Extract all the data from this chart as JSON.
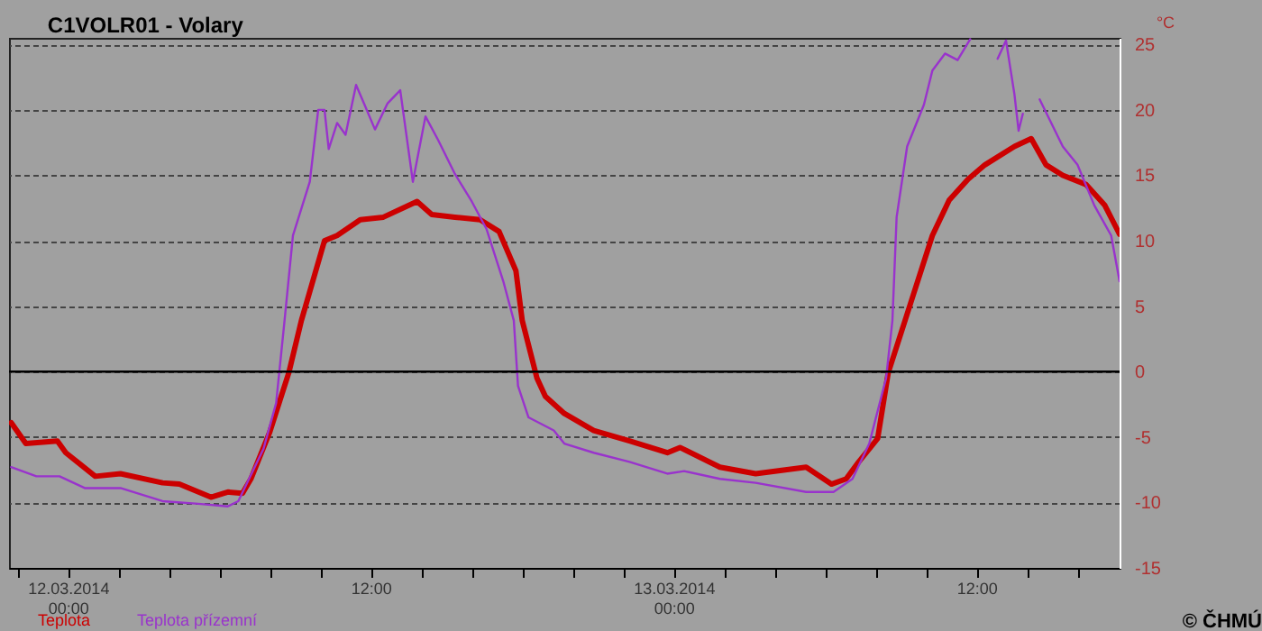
{
  "chart_data": {
    "type": "line",
    "title": "C1VOLR01 - Volary",
    "ylabel": "°C",
    "xlim": [
      "2014-03-11T21:40",
      "2014-03-13T17:40"
    ],
    "xticks": [
      {
        "value": "2014-03-11T22:00",
        "label": null
      },
      {
        "value": "2014-03-12T00:00",
        "label": "12.03.2014\n00:00"
      },
      {
        "value": "2014-03-12T02:00",
        "label": null
      },
      {
        "value": "2014-03-12T04:00",
        "label": null
      },
      {
        "value": "2014-03-12T06:00",
        "label": null
      },
      {
        "value": "2014-03-12T08:00",
        "label": null
      },
      {
        "value": "2014-03-12T10:00",
        "label": null
      },
      {
        "value": "2014-03-12T12:00",
        "label": "12:00"
      },
      {
        "value": "2014-03-12T14:00",
        "label": null
      },
      {
        "value": "2014-03-12T16:00",
        "label": null
      },
      {
        "value": "2014-03-12T18:00",
        "label": null
      },
      {
        "value": "2014-03-12T20:00",
        "label": null
      },
      {
        "value": "2014-03-12T22:00",
        "label": null
      },
      {
        "value": "2014-03-13T00:00",
        "label": "13.03.2014\n00:00"
      },
      {
        "value": "2014-03-13T02:00",
        "label": null
      },
      {
        "value": "2014-03-13T04:00",
        "label": null
      },
      {
        "value": "2014-03-13T06:00",
        "label": null
      },
      {
        "value": "2014-03-13T08:00",
        "label": null
      },
      {
        "value": "2014-03-13T10:00",
        "label": null
      },
      {
        "value": "2014-03-13T12:00",
        "label": "12:00"
      },
      {
        "value": "2014-03-13T14:00",
        "label": null
      },
      {
        "value": "2014-03-13T16:00",
        "label": null
      }
    ],
    "ylim": [
      -15,
      25.5
    ],
    "yticks": [
      -15,
      -10,
      -5,
      0,
      5,
      10,
      15,
      20,
      25
    ],
    "grid": "y",
    "legend": "bottom left",
    "ref_lines": [
      {
        "axis": "y",
        "value": 0,
        "color": "#000000"
      }
    ],
    "annotations": [
      "© ČHMÚ"
    ],
    "series": [
      {
        "name": "Teplota",
        "color": "#cc0000",
        "x": [
          "2014-03-11T21:45",
          "2014-03-11T22:20",
          "2014-03-11T23:35",
          "2014-03-11T23:55",
          "2014-03-12T01:05",
          "2014-03-12T02:05",
          "2014-03-12T03:45",
          "2014-03-12T04:25",
          "2014-03-12T05:40",
          "2014-03-12T06:20",
          "2014-03-12T06:55",
          "2014-03-12T07:15",
          "2014-03-12T08:00",
          "2014-03-12T08:45",
          "2014-03-12T09:15",
          "2014-03-12T10:10",
          "2014-03-12T10:40",
          "2014-03-12T11:35",
          "2014-03-12T12:30",
          "2014-03-12T13:50",
          "2014-03-12T14:25",
          "2014-03-12T15:20",
          "2014-03-12T16:20",
          "2014-03-12T17:05",
          "2014-03-12T17:45",
          "2014-03-12T18:00",
          "2014-03-12T18:35",
          "2014-03-12T18:55",
          "2014-03-12T19:40",
          "2014-03-12T20:50",
          "2014-03-12T22:15",
          "2014-03-12T23:45",
          "2014-03-13T00:15",
          "2014-03-13T01:50",
          "2014-03-13T03:15",
          "2014-03-13T05:15",
          "2014-03-13T06:15",
          "2014-03-13T06:50",
          "2014-03-13T07:20",
          "2014-03-13T08:05",
          "2014-03-13T08:30",
          "2014-03-13T09:10",
          "2014-03-13T10:15",
          "2014-03-13T10:55",
          "2014-03-13T11:40",
          "2014-03-13T12:20",
          "2014-03-13T13:30",
          "2014-03-13T14:10",
          "2014-03-13T14:45",
          "2014-03-13T15:25",
          "2014-03-13T16:20",
          "2014-03-13T17:05",
          "2014-03-13T17:40"
        ],
        "values": [
          -3.9,
          -5.5,
          -5.3,
          -6.2,
          -8.0,
          -7.8,
          -8.5,
          -8.6,
          -9.6,
          -9.2,
          -9.3,
          -8.2,
          -4.6,
          -0.1,
          3.9,
          10.0,
          10.4,
          11.6,
          11.8,
          13.0,
          12.0,
          11.8,
          11.6,
          10.7,
          7.7,
          3.9,
          -0.5,
          -1.9,
          -3.2,
          -4.5,
          -5.3,
          -6.2,
          -5.8,
          -7.3,
          -7.8,
          -7.3,
          -8.6,
          -8.2,
          -6.9,
          -5.1,
          -0.1,
          3.9,
          10.4,
          13.1,
          14.7,
          15.8,
          17.2,
          17.8,
          15.8,
          15.0,
          14.3,
          12.7,
          10.5
        ]
      },
      {
        "name": "Teplota přízemní",
        "color": "#9933cc",
        "x": [
          "2014-03-11T21:45",
          "2014-03-11T22:45",
          "2014-03-11T23:40",
          "2014-03-12T00:40",
          "2014-03-12T02:05",
          "2014-03-12T03:45",
          "2014-03-12T05:10",
          "2014-03-12T06:20",
          "2014-03-12T06:45",
          "2014-03-12T07:45",
          "2014-03-12T08:15",
          "2014-03-12T08:35",
          "2014-03-12T08:55",
          "2014-03-12T09:35",
          "2014-03-12T09:55",
          "2014-03-12T10:10",
          "2014-03-12T10:20",
          "2014-03-12T10:40",
          "2014-03-12T11:00",
          "2014-03-12T11:25",
          "2014-03-12T11:45",
          "2014-03-12T12:10",
          "2014-03-12T12:40",
          "2014-03-12T13:10",
          "2014-03-12T13:40",
          "2014-03-12T14:10",
          "2014-03-12T14:40",
          "2014-03-12T15:20",
          "2014-03-12T16:00",
          "2014-03-12T16:35",
          "2014-03-12T17:15",
          "2014-03-12T17:40",
          "2014-03-12T17:50",
          "2014-03-12T18:15",
          "2014-03-12T19:15",
          "2014-03-12T19:40",
          "2014-03-12T20:50",
          "2014-03-12T22:15",
          "2014-03-12T23:45",
          "2014-03-13T00:25",
          "2014-03-13T01:50",
          "2014-03-13T03:15",
          "2014-03-13T05:15",
          "2014-03-13T06:20",
          "2014-03-13T07:05",
          "2014-03-13T07:45",
          "2014-03-13T08:25",
          "2014-03-13T08:40",
          "2014-03-13T08:50",
          "2014-03-13T09:15",
          "2014-03-13T09:55",
          "2014-03-13T10:15",
          "2014-03-13T10:45",
          "2014-03-13T11:15",
          "2014-03-13T11:45",
          "2014-03-13T12:45",
          "2014-03-13T12:50",
          "2014-03-13T13:10",
          "2014-03-13T13:30",
          "2014-03-13T13:40",
          "2014-03-13T13:50",
          "2014-03-13T14:10",
          "2014-03-13T14:30",
          "2014-03-13T15:25",
          "2014-03-13T16:00",
          "2014-03-13T16:40",
          "2014-03-13T17:20",
          "2014-03-13T17:40"
        ],
        "values": [
          -7.3,
          -8.0,
          -8.0,
          -8.9,
          -8.9,
          -9.9,
          -10.1,
          -10.3,
          -9.9,
          -5.9,
          -2.4,
          3.9,
          10.4,
          14.5,
          20.0,
          20.0,
          17.0,
          19.0,
          18.1,
          21.9,
          20.4,
          18.5,
          20.5,
          21.5,
          14.5,
          19.5,
          17.7,
          15.1,
          13.0,
          10.9,
          6.9,
          3.9,
          -1.1,
          -3.5,
          -4.5,
          -5.5,
          -6.2,
          -6.9,
          -7.8,
          -7.6,
          -8.2,
          -8.5,
          -9.2,
          -9.2,
          -8.2,
          -5.5,
          -0.5,
          3.9,
          11.8,
          17.2,
          20.4,
          23.0,
          24.3,
          23.8,
          25.4,
          null,
          23.9,
          25.3,
          21.2,
          18.4,
          19.7,
          null,
          20.8,
          17.2,
          15.8,
          12.7,
          10.4,
          6.9
        ]
      }
    ]
  }
}
